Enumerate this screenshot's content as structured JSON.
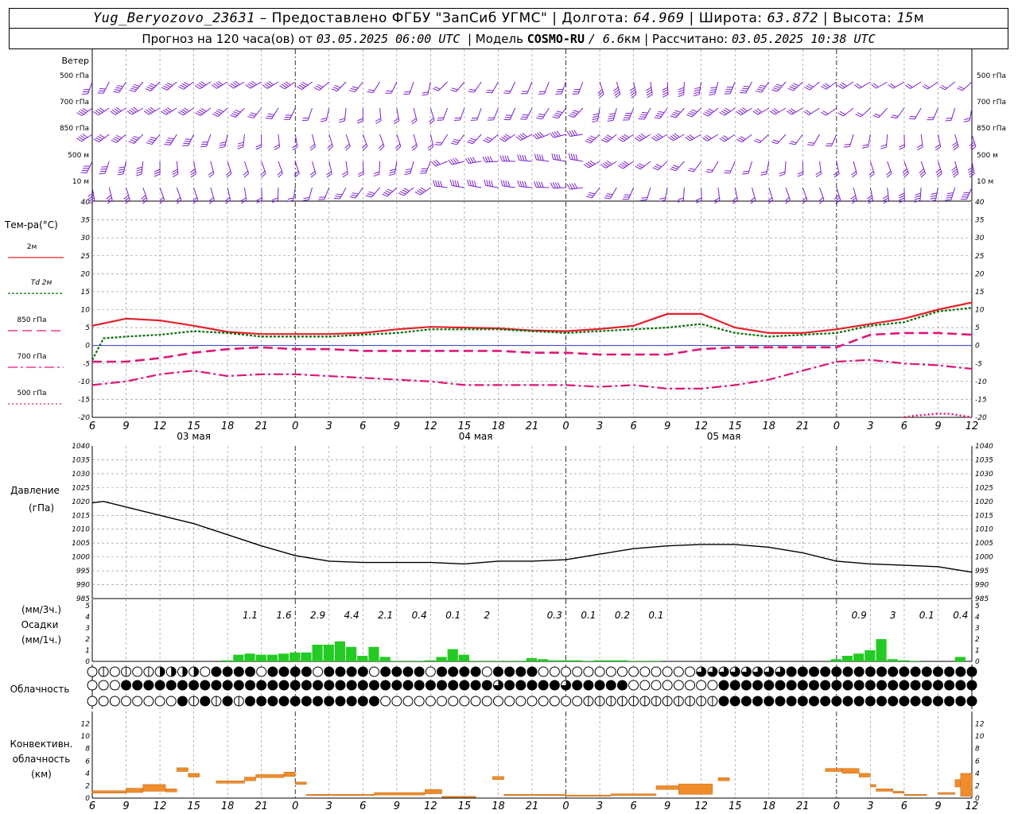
{
  "header": {
    "station": "Yug_Beryozovo_23631",
    "provider": "– Предоставлено ФГБУ \"ЗапСиб УГМС\"",
    "lon_label": "Долгота:",
    "lon_value": "64.969",
    "lat_label": "Широта:",
    "lat_value": "63.872",
    "alt_label": "Высота:",
    "alt_value": "15",
    "alt_unit": "м",
    "forecast_prefix": "Прогноз на 120 часа(ов) от",
    "forecast_time": "03.05.2025 06:00 UTC",
    "model_label": "Модель",
    "model_name": "COSMO-RU",
    "model_res": "/ 6.6",
    "model_res_unit": "км",
    "calc_label": "Рассчитано:",
    "calc_time": "03.05.2025 10:38 UTC"
  },
  "colors": {
    "wind": "#7a1fd6",
    "t2m": "#e8202a",
    "td2m": "#0a6e0a",
    "t850": "#e0157a",
    "t700": "#e0157a",
    "t500": "#e0157a",
    "zero_line": "#2b39c0",
    "precip": "#22cc22",
    "convective": "#f08c2a",
    "grid": "#888888"
  },
  "chart_data": [
    {
      "type": "wind_barbs",
      "title": "Ветер",
      "levels": [
        "500 гПа",
        "700 гПа",
        "850 гПа",
        "500 м",
        "10 м"
      ]
    },
    {
      "type": "line",
      "title": "Тем-ра(°C)",
      "x_labels": [
        "6",
        "9",
        "12",
        "15",
        "18",
        "21",
        "0",
        "3",
        "6",
        "9",
        "12",
        "15",
        "18",
        "21",
        "0",
        "3",
        "6",
        "9",
        "12",
        "15",
        "18",
        "21",
        "0",
        "3",
        "6",
        "9",
        "12"
      ],
      "x_hours": [
        0,
        3,
        6,
        9,
        12,
        15,
        18,
        21,
        24,
        27,
        30,
        33,
        36,
        39,
        42,
        45,
        48,
        51,
        54,
        57,
        60,
        63,
        66,
        69,
        72,
        75,
        78
      ],
      "day_labels": [
        "03 мая",
        "04 мая",
        "05 мая"
      ],
      "ylim": [
        -20,
        40
      ],
      "yticks": [
        -20,
        -15,
        -10,
        -5,
        0,
        5,
        10,
        15,
        20,
        25,
        30,
        35,
        40
      ],
      "grid": true,
      "series": [
        {
          "name": "2м",
          "style": "solid",
          "x": [
            0,
            3,
            6,
            9,
            12,
            15,
            18,
            21,
            24,
            27,
            30,
            33,
            36,
            39,
            42,
            45,
            48,
            51,
            54,
            57,
            60,
            63,
            66,
            69,
            72,
            75,
            78
          ],
          "values": [
            5.5,
            7.5,
            7,
            5.5,
            3.8,
            3.2,
            3.2,
            3.2,
            3.5,
            4.5,
            5.2,
            5,
            4.8,
            4.2,
            4,
            4.6,
            5.5,
            8.8,
            8.8,
            5,
            3.5,
            3.5,
            4.5,
            6,
            7.5,
            10,
            12
          ]
        },
        {
          "name": "Td 2м",
          "style": "dotted",
          "x": [
            0,
            1,
            3,
            6,
            9,
            12,
            15,
            18,
            21,
            24,
            27,
            30,
            33,
            36,
            39,
            42,
            45,
            48,
            51,
            54,
            57,
            60,
            63,
            66,
            69,
            72,
            75,
            78
          ],
          "values": [
            -4,
            2,
            2.5,
            3,
            4,
            3.5,
            2.5,
            2.5,
            2.5,
            3,
            3.5,
            4.5,
            4.5,
            4.5,
            4,
            3.5,
            4,
            4.5,
            5,
            6,
            3.5,
            2.5,
            3,
            3.5,
            5.5,
            6.5,
            9.5,
            10.5
          ]
        },
        {
          "name": "850 гПа",
          "style": "dashed",
          "x": [
            0,
            3,
            6,
            9,
            12,
            15,
            18,
            21,
            24,
            27,
            30,
            33,
            36,
            39,
            42,
            45,
            48,
            51,
            54,
            57,
            60,
            63,
            66,
            69,
            72,
            75,
            78
          ],
          "values": [
            -4.5,
            -4.5,
            -3.5,
            -2,
            -1,
            -0.5,
            -1,
            -1,
            -1.5,
            -1.5,
            -1.5,
            -1.5,
            -1.5,
            -2,
            -2,
            -2.5,
            -2.5,
            -2.5,
            -1,
            -0.5,
            -0.5,
            -0.5,
            -0.5,
            3,
            3.5,
            3.5,
            3
          ]
        },
        {
          "name": "700 гПа",
          "style": "dashdot",
          "x": [
            0,
            3,
            6,
            9,
            12,
            15,
            18,
            21,
            24,
            27,
            30,
            33,
            36,
            39,
            42,
            45,
            48,
            51,
            54,
            57,
            60,
            63,
            66,
            69,
            72,
            75,
            78
          ],
          "values": [
            -11,
            -10,
            -8,
            -7,
            -8.5,
            -8,
            -8,
            -8.5,
            -9,
            -9.5,
            -10,
            -11,
            -11,
            -11,
            -11,
            -11.5,
            -11,
            -12,
            -12,
            -11,
            -9.5,
            -7,
            -4.5,
            -4,
            -5,
            -5.5,
            -6.5
          ]
        },
        {
          "name": "500 гПа",
          "style": "dotted",
          "x": [
            72,
            73,
            75,
            76,
            77,
            78
          ],
          "values": [
            -20,
            -19.5,
            -19,
            -19,
            -19.5,
            -20
          ]
        }
      ]
    },
    {
      "type": "line",
      "title": "Давление",
      "ylabel": "(гПа)",
      "ylim": [
        985,
        1040
      ],
      "yticks": [
        985,
        990,
        995,
        1000,
        1005,
        1010,
        1015,
        1020,
        1025,
        1030,
        1035,
        1040
      ],
      "grid": true,
      "x": [
        0,
        1,
        3,
        6,
        9,
        12,
        15,
        18,
        21,
        24,
        27,
        30,
        33,
        36,
        39,
        42,
        45,
        48,
        51,
        54,
        57,
        60,
        63,
        66,
        69,
        72,
        75,
        78
      ],
      "values": [
        1019.5,
        1020,
        1018,
        1015,
        1012,
        1008,
        1004,
        1000.5,
        998.5,
        998,
        998,
        998,
        997.5,
        998.5,
        998.5,
        999,
        1001,
        1003,
        1004,
        1004.5,
        1004.5,
        1003.5,
        1001.5,
        998.5,
        997.5,
        997,
        996.5,
        994.5
      ]
    },
    {
      "type": "bar",
      "title": "Осадки",
      "ylabel_3h": "(мм/3ч.)",
      "ylabel_1h": "(мм/1ч.)",
      "ylim": [
        0,
        5
      ],
      "yticks": [
        0,
        1,
        2,
        3,
        4,
        5
      ],
      "sums_3h": [
        {
          "x": 14,
          "label": "1.1"
        },
        {
          "x": 17,
          "label": "1.6"
        },
        {
          "x": 20,
          "label": "2.9"
        },
        {
          "x": 23,
          "label": "4.4"
        },
        {
          "x": 26,
          "label": "2.1"
        },
        {
          "x": 29,
          "label": "0.4"
        },
        {
          "x": 32,
          "label": "0.1"
        },
        {
          "x": 35,
          "label": "2"
        },
        {
          "x": 41,
          "label": "0.3"
        },
        {
          "x": 44,
          "label": "0.1"
        },
        {
          "x": 47,
          "label": "0.2"
        },
        {
          "x": 50,
          "label": "0.1"
        },
        {
          "x": 68,
          "label": "0.9"
        },
        {
          "x": 71,
          "label": "3"
        },
        {
          "x": 74,
          "label": "0.1"
        },
        {
          "x": 77,
          "label": "0.4"
        }
      ],
      "hourly_x": [
        12,
        13,
        14,
        15,
        16,
        17,
        18,
        19,
        20,
        21,
        22,
        23,
        24,
        25,
        26,
        27,
        28,
        29,
        30,
        31,
        32,
        33,
        34,
        35,
        36,
        37,
        38,
        39,
        40,
        41,
        42,
        43,
        44,
        45,
        46,
        47,
        48,
        49,
        50,
        66,
        67,
        68,
        69,
        70,
        71,
        72,
        73,
        77
      ],
      "hourly_values": [
        0.1,
        0.6,
        0.7,
        0.6,
        0.6,
        0.7,
        0.8,
        0.8,
        1.5,
        1.5,
        1.8,
        1.3,
        0.5,
        1.3,
        0.4,
        0.05,
        0.05,
        0.05,
        0.1,
        0.4,
        1.1,
        0.6,
        0.05,
        0.05,
        0.05,
        0.05,
        0.05,
        0.3,
        0.2,
        0.1,
        0.1,
        0.1,
        0.05,
        0.1,
        0.1,
        0.1,
        0.05,
        0.05,
        0.05,
        0.2,
        0.5,
        0.7,
        1.0,
        2.0,
        0.2,
        0.1,
        0.05,
        0.4
      ]
    },
    {
      "type": "table",
      "title": "Облачность",
      "rows": 3,
      "symbols_legend": {
        "0": "clear",
        "1": "1/4",
        "2": "1/2",
        "3": "3/4",
        "4": "overcast"
      }
    },
    {
      "type": "bar",
      "title": "Конвективн.",
      "title2": "облачность",
      "ylabel": "(км)",
      "ylim": [
        0,
        14
      ],
      "yticks": [
        0,
        2,
        4,
        6,
        8,
        10,
        12
      ],
      "segments": [
        {
          "x0": 0,
          "x1": 3,
          "base": 0.8,
          "top": 1.2
        },
        {
          "x0": 3,
          "x1": 4.5,
          "base": 0.9,
          "top": 1.6
        },
        {
          "x0": 4.5,
          "x1": 6.5,
          "base": 1.1,
          "top": 2.2
        },
        {
          "x0": 6.5,
          "x1": 7.5,
          "base": 1.0,
          "top": 1.5
        },
        {
          "x0": 7.5,
          "x1": 8.5,
          "base": 4.3,
          "top": 4.9
        },
        {
          "x0": 8.5,
          "x1": 9.5,
          "base": 3.4,
          "top": 4.0
        },
        {
          "x0": 11,
          "x1": 13.5,
          "base": 2.4,
          "top": 2.8
        },
        {
          "x0": 13.5,
          "x1": 14.5,
          "base": 2.8,
          "top": 3.4
        },
        {
          "x0": 14.5,
          "x1": 17,
          "base": 3.3,
          "top": 3.8
        },
        {
          "x0": 17,
          "x1": 18,
          "base": 3.5,
          "top": 4.2
        },
        {
          "x0": 18,
          "x1": 19,
          "base": 2.2,
          "top": 2.6
        },
        {
          "x0": 19,
          "x1": 25,
          "base": 0.4,
          "top": 0.6
        },
        {
          "x0": 25,
          "x1": 29.5,
          "base": 0.5,
          "top": 0.9
        },
        {
          "x0": 29.5,
          "x1": 31,
          "base": 0.7,
          "top": 1.4
        },
        {
          "x0": 31,
          "x1": 34,
          "base": 0.2,
          "top": 0.3
        },
        {
          "x0": 35.5,
          "x1": 36.5,
          "base": 3.0,
          "top": 3.5
        },
        {
          "x0": 36.5,
          "x1": 42,
          "base": 0.4,
          "top": 0.6
        },
        {
          "x0": 42,
          "x1": 46,
          "base": 0.3,
          "top": 0.5
        },
        {
          "x0": 46,
          "x1": 50,
          "base": 0.4,
          "top": 0.7
        },
        {
          "x0": 50,
          "x1": 52,
          "base": 1.4,
          "top": 2.0
        },
        {
          "x0": 52,
          "x1": 55,
          "base": 0.6,
          "top": 2.3
        },
        {
          "x0": 55.5,
          "x1": 56.5,
          "base": 2.8,
          "top": 3.3
        },
        {
          "x0": 65,
          "x1": 66.5,
          "base": 4.3,
          "top": 4.8
        },
        {
          "x0": 66.5,
          "x1": 68,
          "base": 4.0,
          "top": 4.8
        },
        {
          "x0": 68,
          "x1": 69,
          "base": 3.4,
          "top": 4.0
        },
        {
          "x0": 69,
          "x1": 69.5,
          "base": 1.8,
          "top": 2.2
        },
        {
          "x0": 69.5,
          "x1": 71,
          "base": 1.1,
          "top": 1.5
        },
        {
          "x0": 71,
          "x1": 72,
          "base": 0.8,
          "top": 1.1
        },
        {
          "x0": 72,
          "x1": 74,
          "base": 0.4,
          "top": 0.6
        },
        {
          "x0": 75,
          "x1": 76.5,
          "base": 0.6,
          "top": 0.9
        },
        {
          "x0": 76.5,
          "x1": 78,
          "base": 1.8,
          "top": 3.0
        },
        {
          "x0": 77,
          "x1": 78,
          "base": 0.3,
          "top": 4.0
        }
      ]
    }
  ]
}
